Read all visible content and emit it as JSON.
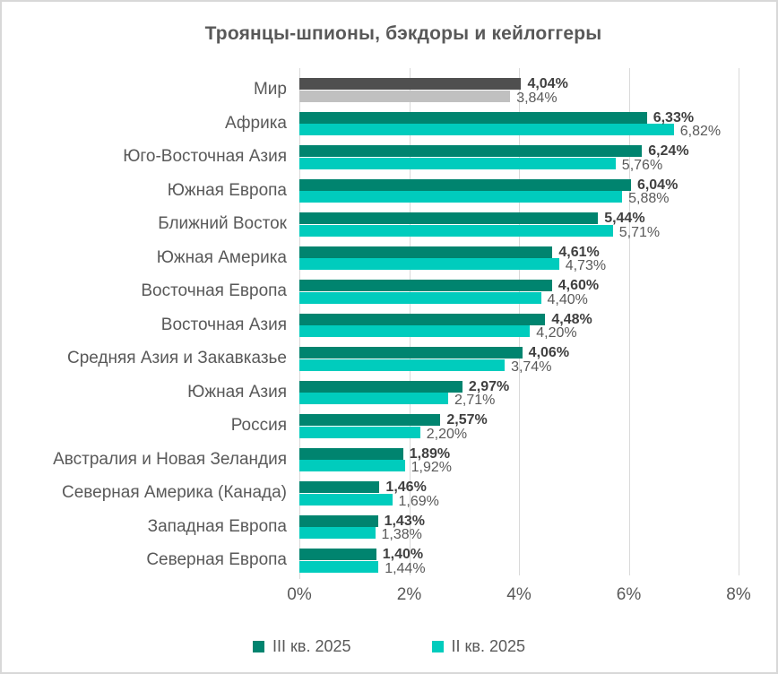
{
  "chart_data": {
    "type": "bar",
    "orientation": "horizontal",
    "title": "Троянцы-шпионы, бэкдоры и кейлоггеры",
    "categories": [
      "Мир",
      "Африка",
      "Юго-Восточная Азия",
      "Южная Европа",
      "Ближний Восток",
      "Южная Америка",
      "Восточная Европа",
      "Восточная Азия",
      "Средняя Азия и Закавказье",
      "Южная Азия",
      "Россия",
      "Австралия и Новая Зеландия",
      "Северная Америка (Канада)",
      "Западная Европа",
      "Северная Европа"
    ],
    "series": [
      {
        "name": "III кв. 2025",
        "color": "#00846F",
        "values": [
          4.04,
          6.33,
          6.24,
          6.04,
          5.44,
          4.61,
          4.6,
          4.48,
          4.06,
          2.97,
          2.57,
          1.89,
          1.46,
          1.43,
          1.4
        ],
        "value_labels": [
          "4,04%",
          "6,33%",
          "6,24%",
          "6,04%",
          "5,44%",
          "4,61%",
          "4,60%",
          "4,48%",
          "4,06%",
          "2,97%",
          "2,57%",
          "1,89%",
          "1,46%",
          "1,43%",
          "1,40%"
        ]
      },
      {
        "name": "II кв. 2025",
        "color": "#00CCBD",
        "values": [
          3.84,
          6.82,
          5.76,
          5.88,
          5.71,
          4.73,
          4.4,
          4.2,
          3.74,
          2.71,
          2.2,
          1.92,
          1.69,
          1.38,
          1.44
        ],
        "value_labels": [
          "3,84%",
          "6,82%",
          "5,76%",
          "5,88%",
          "5,71%",
          "4,73%",
          "4,40%",
          "4,20%",
          "3,74%",
          "2,71%",
          "2,20%",
          "1,92%",
          "1,69%",
          "1,38%",
          "1,44%"
        ]
      }
    ],
    "world_row_colors": {
      "series1": "#4F4F4F",
      "series2": "#C0C0C0"
    },
    "xlabel": "",
    "ylabel": "",
    "x_axis": {
      "min": 0,
      "max": 8,
      "tick_labels": [
        "0%",
        "2%",
        "4%",
        "6%",
        "8%"
      ],
      "tick_values": [
        0,
        2,
        4,
        6,
        8
      ]
    },
    "grid": "vertical",
    "legend_position": "bottom",
    "colors": {
      "gridline": "#D9D9D9",
      "text": "#595959",
      "bold_value_text": "#3F3F3F",
      "background": "#FFFFFF",
      "frame_border": "#D8D8D8"
    }
  }
}
